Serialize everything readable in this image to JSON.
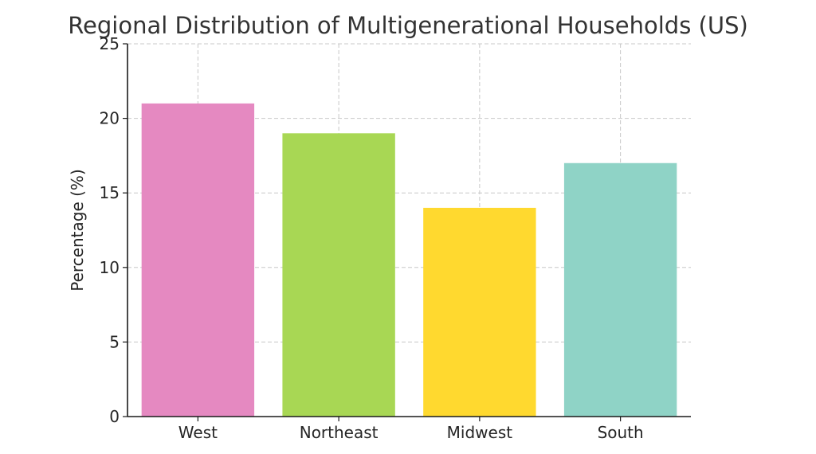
{
  "chart_data": {
    "type": "bar",
    "title": "Regional Distribution of Multigenerational Households (US)",
    "xlabel": "",
    "ylabel": "Percentage (%)",
    "categories": [
      "West",
      "Northeast",
      "Midwest",
      "South"
    ],
    "values": [
      21,
      19,
      14,
      17
    ],
    "colors": [
      "#e589c1",
      "#a8d754",
      "#ffd92f",
      "#8fd3c6"
    ],
    "ylim": [
      0,
      25
    ],
    "yticks": [
      0,
      5,
      10,
      15,
      20,
      25
    ],
    "grid": true
  }
}
